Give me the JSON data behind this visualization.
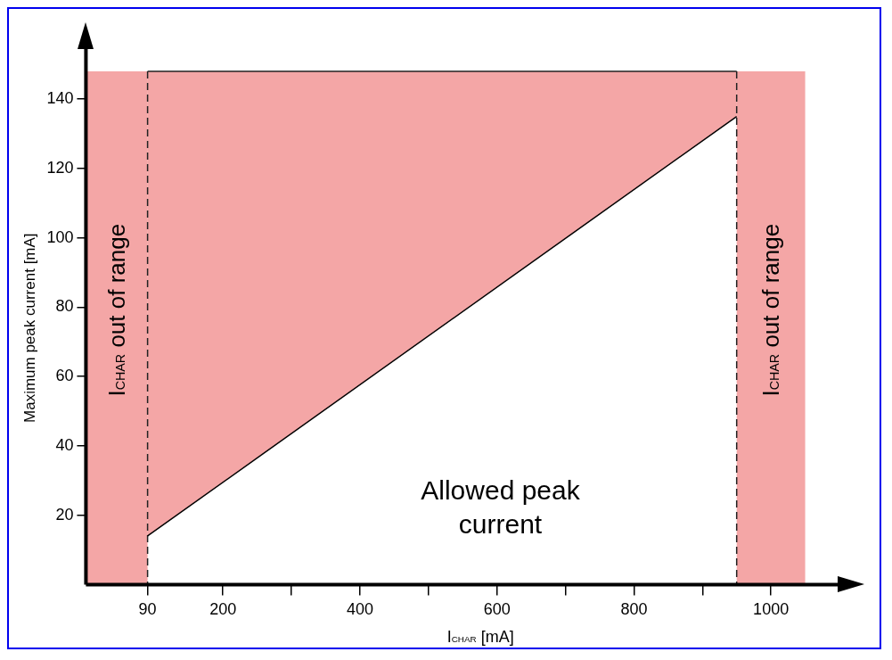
{
  "chart_data": {
    "type": "line",
    "xlabel": "I$_{CHAR}$ [mA]",
    "ylabel": "Maximum peak current [mA]",
    "xlim": [
      0,
      1100
    ],
    "ylim": [
      0,
      148
    ],
    "xticks": [
      90,
      200,
      {
        "value": 300,
        "label": null
      },
      400,
      {
        "value": 500,
        "label": null
      },
      600,
      {
        "value": 700,
        "label": null
      },
      800,
      {
        "value": 900,
        "label": null
      },
      1000
    ],
    "yticks": [
      20,
      40,
      60,
      80,
      100,
      120,
      140
    ],
    "series": [
      {
        "x": [
          90,
          950
        ],
        "values": [
          14,
          135
        ],
        "color": "#000000",
        "upper": [
          148,
          148
        ],
        "lower": [
          14,
          135
        ]
      }
    ],
    "bands": [
      {
        "axis": "x",
        "from": 0,
        "to": 90,
        "label": "I$_{CHAR}$ out of range",
        "color": "#e00000"
      },
      {
        "axis": "x",
        "from": 950,
        "to": 1050,
        "label": "I$_{CHAR}$ out of range",
        "color": "#e00000"
      }
    ],
    "ref_lines": [
      {
        "axis": "x",
        "value": 90,
        "line_style": "dashed"
      },
      {
        "axis": "x",
        "value": 950,
        "line_style": "dashed"
      }
    ],
    "annotations": [
      "Allowed peak current"
    ],
    "grid": false,
    "legend": false
  }
}
